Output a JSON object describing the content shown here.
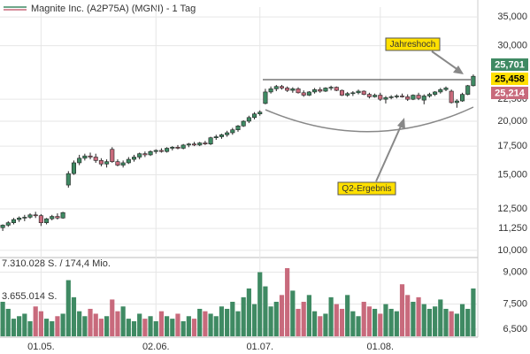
{
  "chart_data": {
    "type": "candlestick",
    "title": "Magnite Inc. (A2P75A) (MGNI) - 1 Tag",
    "categories": [
      null,
      null,
      null,
      null,
      null,
      null,
      null,
      "01.05.",
      null,
      null,
      null,
      null,
      null,
      null,
      null,
      null,
      null,
      null,
      null,
      null,
      null,
      null,
      null,
      null,
      null,
      null,
      null,
      null,
      "02.06.",
      null,
      null,
      null,
      null,
      null,
      null,
      null,
      null,
      null,
      null,
      null,
      null,
      null,
      null,
      null,
      null,
      null,
      null,
      "01.07.",
      null,
      null,
      null,
      null,
      null,
      null,
      null,
      null,
      null,
      null,
      null,
      null,
      null,
      null,
      null,
      null,
      null,
      null,
      null,
      null,
      null,
      "01.08.",
      null,
      null,
      null,
      null,
      null,
      null,
      null,
      null,
      null,
      null,
      null,
      null,
      null,
      null,
      null,
      null,
      null
    ],
    "open": [
      11300,
      11450,
      11600,
      11800,
      11900,
      11950,
      12100,
      12050,
      11600,
      11850,
      12000,
      11900,
      14200,
      15100,
      16000,
      16400,
      16600,
      16500,
      16200,
      15900,
      17200,
      16100,
      15800,
      16000,
      16300,
      16500,
      16800,
      16700,
      17000,
      17100,
      17000,
      17300,
      17400,
      17300,
      17600,
      17700,
      17600,
      17800,
      17700,
      18300,
      18400,
      18600,
      18800,
      19100,
      19500,
      20000,
      20400,
      20800,
      22000,
      23400,
      23800,
      24100,
      23900,
      23600,
      23800,
      23300,
      23000,
      23400,
      23700,
      23500,
      23900,
      24000,
      23600,
      23000,
      23200,
      23300,
      23500,
      23100,
      22800,
      23000,
      22500,
      22700,
      22800,
      22900,
      22800,
      22500,
      23000,
      22400,
      22900,
      23100,
      23400,
      23700,
      23500,
      22100,
      22300,
      23100,
      24200
    ],
    "high": [
      11500,
      11700,
      11900,
      12000,
      12100,
      12200,
      12300,
      12150,
      11900,
      12100,
      12200,
      12300,
      15300,
      16200,
      16700,
      16800,
      16900,
      16800,
      16400,
      16300,
      17400,
      16300,
      16200,
      16500,
      16700,
      16900,
      17000,
      17100,
      17200,
      17300,
      17400,
      17500,
      17600,
      17700,
      17800,
      17900,
      17900,
      18000,
      18400,
      18600,
      18700,
      19000,
      19300,
      19600,
      20100,
      20600,
      21000,
      21200,
      23800,
      24100,
      24300,
      24300,
      24100,
      24000,
      24000,
      23600,
      23500,
      23900,
      24000,
      24000,
      24200,
      24100,
      23700,
      23400,
      23500,
      23700,
      23600,
      23300,
      23200,
      23300,
      22900,
      23000,
      23100,
      23200,
      23100,
      23100,
      23300,
      23100,
      23300,
      23500,
      23900,
      24100,
      23700,
      22500,
      23300,
      24300,
      25701
    ],
    "low": [
      11100,
      11350,
      11500,
      11650,
      11700,
      11850,
      11900,
      11400,
      11500,
      11750,
      11800,
      11850,
      14000,
      15000,
      15800,
      16200,
      16300,
      16000,
      15700,
      15600,
      16000,
      15700,
      15600,
      15900,
      16100,
      16300,
      16500,
      16600,
      16800,
      16900,
      16900,
      17100,
      17200,
      17200,
      17400,
      17500,
      17500,
      17600,
      17600,
      18100,
      18200,
      18400,
      18600,
      18900,
      19400,
      19800,
      20200,
      20600,
      21900,
      23200,
      23500,
      23700,
      23400,
      23300,
      23200,
      22800,
      22900,
      23200,
      23300,
      23400,
      23600,
      23500,
      22900,
      22800,
      22900,
      23100,
      23000,
      22600,
      22700,
      22300,
      22000,
      22500,
      22600,
      22700,
      22300,
      22400,
      22400,
      21900,
      22700,
      22900,
      23200,
      23500,
      22000,
      21500,
      22200,
      23000,
      24100
    ],
    "close": [
      11450,
      11600,
      11800,
      11900,
      11950,
      12100,
      12050,
      11600,
      11850,
      12000,
      11900,
      12250,
      15100,
      16000,
      16400,
      16600,
      16500,
      16200,
      15900,
      16100,
      16100,
      15800,
      16000,
      16300,
      16500,
      16800,
      16700,
      17000,
      17100,
      17000,
      17300,
      17400,
      17300,
      17600,
      17700,
      17600,
      17800,
      17700,
      18300,
      18400,
      18600,
      18800,
      19100,
      19500,
      20000,
      20400,
      20800,
      21000,
      23400,
      23800,
      24100,
      23900,
      23600,
      23800,
      23300,
      23000,
      23400,
      23700,
      23500,
      23900,
      24000,
      23600,
      23000,
      23200,
      23300,
      23500,
      23100,
      22800,
      23000,
      22500,
      22700,
      22800,
      22900,
      22800,
      22500,
      23000,
      22600,
      22900,
      23100,
      23400,
      23700,
      23900,
      22100,
      22300,
      23100,
      24200,
      25458
    ],
    "volume": [
      7600,
      7300,
      6900,
      7000,
      7100,
      6800,
      7400,
      7200,
      6900,
      6800,
      7000,
      7100,
      8600,
      7800,
      7200,
      7000,
      7300,
      7100,
      6900,
      7000,
      7700,
      7200,
      7400,
      6900,
      6800,
      7100,
      6900,
      7000,
      6800,
      7200,
      7000,
      6900,
      7100,
      6800,
      7000,
      6900,
      7300,
      7200,
      7100,
      7000,
      7400,
      7300,
      7600,
      7200,
      7800,
      8200,
      7500,
      9000,
      8300,
      7400,
      7600,
      7900,
      9210,
      8100,
      7300,
      7600,
      7900,
      7200,
      7000,
      7100,
      7800,
      7500,
      7300,
      7900,
      7200,
      7000,
      7600,
      7400,
      7300,
      7100,
      7500,
      7300,
      7200,
      8400,
      7900,
      7600,
      7800,
      7500,
      7300,
      7400,
      7700,
      7300,
      7200,
      7100,
      7500,
      7300,
      8200
    ],
    "up_color": "#3f8a63",
    "down_color": "#c86a7c",
    "log_scale": true,
    "grid": true,
    "ylim": [
      9670,
      36900
    ],
    "yticks": [
      {
        "value": 10000,
        "label": "10,000"
      },
      {
        "value": 11250,
        "label": "11,250"
      },
      {
        "value": 12500,
        "label": "12,500"
      },
      {
        "value": 15000,
        "label": "15,000"
      },
      {
        "value": 17500,
        "label": "17,500"
      },
      {
        "value": 20000,
        "label": "20,000"
      },
      {
        "value": 22500,
        "label": "22,500"
      },
      {
        "value": 30000,
        "label": "30,000"
      },
      {
        "value": 35000,
        "label": "35,000"
      }
    ],
    "volume_ylim": [
      6240,
      9210
    ],
    "volume_yticks": [
      {
        "value": 6500,
        "label": "6,500"
      },
      {
        "value": 7500,
        "label": "7,500"
      },
      {
        "value": 9000,
        "label": "9,000"
      }
    ],
    "price_labels": [
      {
        "value": 25701,
        "label": "25,701",
        "color": "#3f8a63"
      },
      {
        "value": 25458,
        "label": "25,458",
        "color": "#ffe000"
      },
      {
        "value": 25214,
        "label": "25,214",
        "color": "#c86a7c"
      }
    ],
    "volume_labels": [
      "7.310.028 S. / 174,4 Mio.",
      "3.655.014 S."
    ],
    "annotations": [
      "Jahreshoch",
      "Q2-Ergebnis"
    ]
  }
}
